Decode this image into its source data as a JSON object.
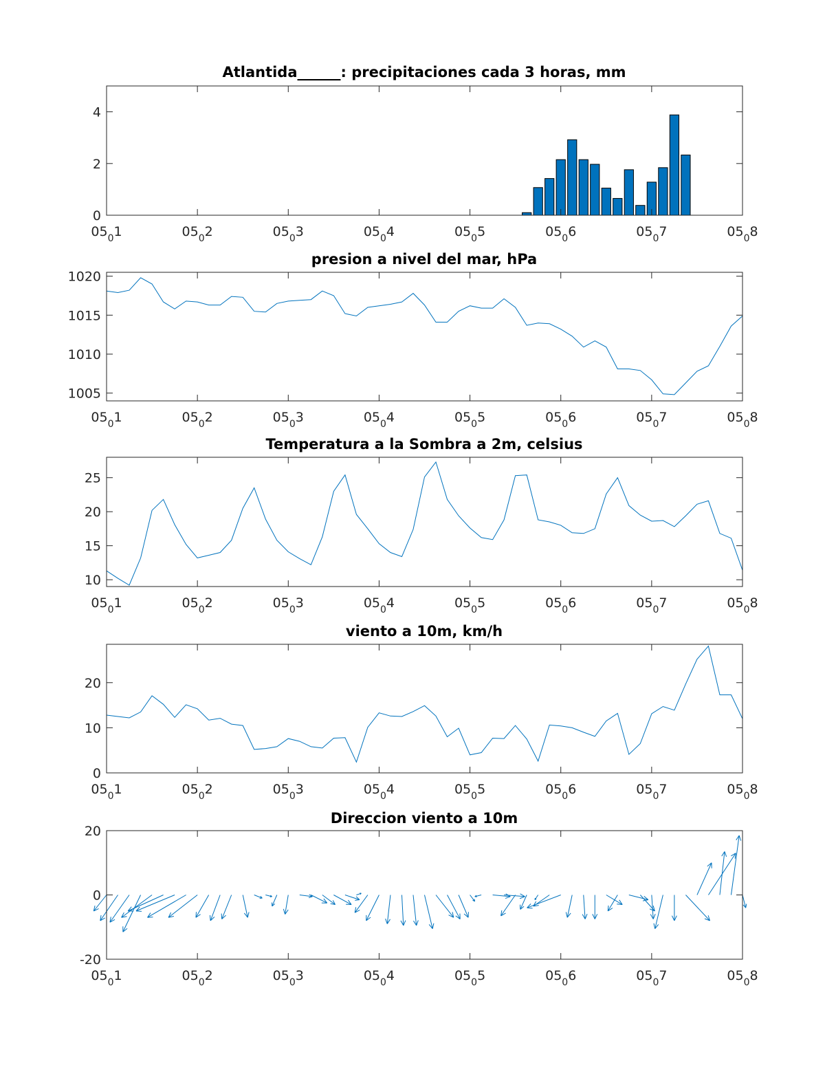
{
  "chart_data": [
    {
      "type": "bar",
      "title": "Atlantida______: precipitaciones cada 3 horas, mm",
      "xlabel": "",
      "ylabel": "",
      "xlim": [
        1,
        8
      ],
      "ylim": [
        0,
        5
      ],
      "yticks": [
        0,
        2,
        4
      ],
      "xticks": [
        {
          "main": "05",
          "sub": "0",
          "day": "1"
        },
        {
          "main": "05",
          "sub": "0",
          "day": "2"
        },
        {
          "main": "05",
          "sub": "0",
          "day": "3"
        },
        {
          "main": "05",
          "sub": "0",
          "day": "4"
        },
        {
          "main": "05",
          "sub": "0",
          "day": "5"
        },
        {
          "main": "05",
          "sub": "0",
          "day": "6"
        },
        {
          "main": "05",
          "sub": "0",
          "day": "7"
        },
        {
          "main": "05",
          "sub": "0",
          "day": "8"
        }
      ],
      "x": [
        5.625,
        5.75,
        5.875,
        6.0,
        6.125,
        6.25,
        6.375,
        6.5,
        6.625,
        6.75,
        6.875,
        7.0,
        7.125,
        7.25,
        7.375
      ],
      "values": [
        0.1,
        1.07,
        1.42,
        2.15,
        2.92,
        2.15,
        1.97,
        1.05,
        0.65,
        1.76,
        0.38,
        1.28,
        1.84,
        3.88,
        2.33
      ],
      "bar_color": "#0072BD"
    },
    {
      "type": "line",
      "title": "presion a nivel del mar, hPa",
      "xlabel": "",
      "ylabel": "",
      "xlim": [
        1,
        8
      ],
      "ylim": [
        1004,
        1020.5
      ],
      "yticks": [
        1005,
        1010,
        1015,
        1020
      ],
      "x_start": 1,
      "x_step": 0.125,
      "values": [
        1018.1,
        1017.9,
        1018.2,
        1019.8,
        1019.0,
        1016.7,
        1015.8,
        1016.8,
        1016.7,
        1016.3,
        1016.3,
        1017.4,
        1017.3,
        1015.5,
        1015.4,
        1016.5,
        1016.8,
        1016.9,
        1017.0,
        1018.1,
        1017.5,
        1015.2,
        1014.9,
        1016.0,
        1016.2,
        1016.4,
        1016.7,
        1017.8,
        1016.3,
        1014.1,
        1014.1,
        1015.5,
        1016.2,
        1015.9,
        1015.9,
        1017.1,
        1016.0,
        1013.7,
        1014.0,
        1013.9,
        1013.2,
        1012.3,
        1010.9,
        1011.7,
        1010.9,
        1008.1,
        1008.1,
        1007.9,
        1006.7,
        1004.9,
        1004.8,
        1006.3,
        1007.8,
        1008.5,
        1011.0,
        1013.6,
        1014.9
      ],
      "line_color": "#0072BD"
    },
    {
      "type": "line",
      "title": "Temperatura a la Sombra a 2m, celsius",
      "xlabel": "",
      "ylabel": "",
      "xlim": [
        1,
        8
      ],
      "ylim": [
        9,
        28
      ],
      "yticks": [
        10,
        15,
        20,
        25
      ],
      "x_start": 1,
      "x_step": 0.125,
      "values": [
        11.3,
        10.2,
        9.2,
        13.2,
        20.2,
        21.8,
        18.1,
        15.2,
        13.2,
        13.6,
        14.0,
        15.8,
        20.5,
        23.5,
        18.9,
        15.8,
        14.1,
        13.1,
        12.2,
        16.3,
        23.0,
        25.4,
        19.6,
        17.5,
        15.3,
        14.0,
        13.4,
        17.4,
        25.1,
        27.3,
        21.8,
        19.4,
        17.6,
        16.2,
        15.9,
        18.8,
        25.3,
        25.4,
        18.8,
        18.5,
        18.0,
        16.9,
        16.8,
        17.5,
        22.6,
        25.0,
        20.9,
        19.5,
        18.6,
        18.7,
        17.8,
        19.4,
        21.1,
        21.6,
        16.8,
        16.1,
        11.4
      ],
      "line_color": "#0072BD"
    },
    {
      "type": "line",
      "title": "viento a 10m, km/h",
      "xlabel": "",
      "ylabel": "",
      "xlim": [
        1,
        8
      ],
      "ylim": [
        0,
        28.5
      ],
      "yticks": [
        0,
        10,
        20
      ],
      "x_start": 1,
      "x_step": 0.125,
      "values": [
        12.8,
        12.5,
        12.2,
        13.5,
        17.1,
        15.2,
        12.3,
        15.1,
        14.2,
        11.7,
        12.1,
        10.8,
        10.5,
        5.2,
        5.4,
        5.8,
        7.6,
        7.0,
        5.8,
        5.5,
        7.7,
        7.8,
        2.4,
        10.1,
        13.3,
        12.6,
        12.5,
        13.6,
        14.9,
        12.6,
        8.0,
        9.9,
        4.0,
        4.5,
        7.7,
        7.6,
        10.5,
        7.5,
        2.6,
        10.6,
        10.4,
        10.0,
        9.0,
        8.1,
        11.5,
        13.2,
        4.1,
        6.5,
        13.1,
        14.7,
        13.9,
        19.7,
        25.2,
        28.1,
        17.3,
        17.3,
        12.0
      ],
      "line_color": "#0072BD"
    },
    {
      "type": "quiver",
      "title": "Direccion viento a 10m",
      "xlabel": "",
      "ylabel": "",
      "xlim": [
        1,
        8
      ],
      "ylim": [
        -20,
        20
      ],
      "yticks": [
        -20,
        0,
        20
      ],
      "x_start": 1,
      "x_step": 0.125,
      "u": [
        -4.0,
        -5.5,
        -6.0,
        -5.5,
        -9.5,
        -11.0,
        -12.0,
        -12.0,
        -9.0,
        -4.0,
        -3.0,
        -3.0,
        1.5,
        2.5,
        2.0,
        -1.5,
        -1.0,
        4.0,
        5.0,
        4.0,
        5.5,
        4.5,
        1.5,
        -4.0,
        -4.0,
        -1.0,
        0.5,
        1.0,
        2.5,
        5.5,
        4.0,
        3.0,
        1.5,
        -2.0,
        5.5,
        6.5,
        -4.5,
        -2.0,
        -1.0,
        -5.0,
        -10.5,
        -1.5,
        0.5,
        0.0,
        5.0,
        -3.0,
        6.0,
        4.5,
        0.5,
        -2.5,
        0.0,
        7.5,
        4.5,
        8.5,
        1.5,
        2.5,
        1.0
      ],
      "v": [
        -5.0,
        -8.0,
        -8.5,
        -11.5,
        -7.0,
        -5.0,
        -5.0,
        -7.0,
        -7.0,
        -7.0,
        -8.0,
        -7.5,
        -7.0,
        -1.0,
        -0.5,
        -3.5,
        -6.0,
        -0.5,
        -2.5,
        -3.0,
        -3.0,
        -1.5,
        0.5,
        -5.5,
        -8.0,
        -9.0,
        -9.5,
        -9.5,
        -10.5,
        -7.0,
        -7.5,
        -7.0,
        -2.0,
        -0.5,
        -0.5,
        -0.5,
        -6.5,
        -4.5,
        -1.5,
        -3.5,
        -4.0,
        -7.0,
        -7.5,
        -7.5,
        -3.0,
        -5.0,
        -1.5,
        -5.0,
        -7.5,
        -10.5,
        -8.0,
        -8.0,
        10.0,
        13.0,
        13.5,
        18.5,
        -4.0
      ],
      "arrow_color": "#0072BD"
    }
  ]
}
